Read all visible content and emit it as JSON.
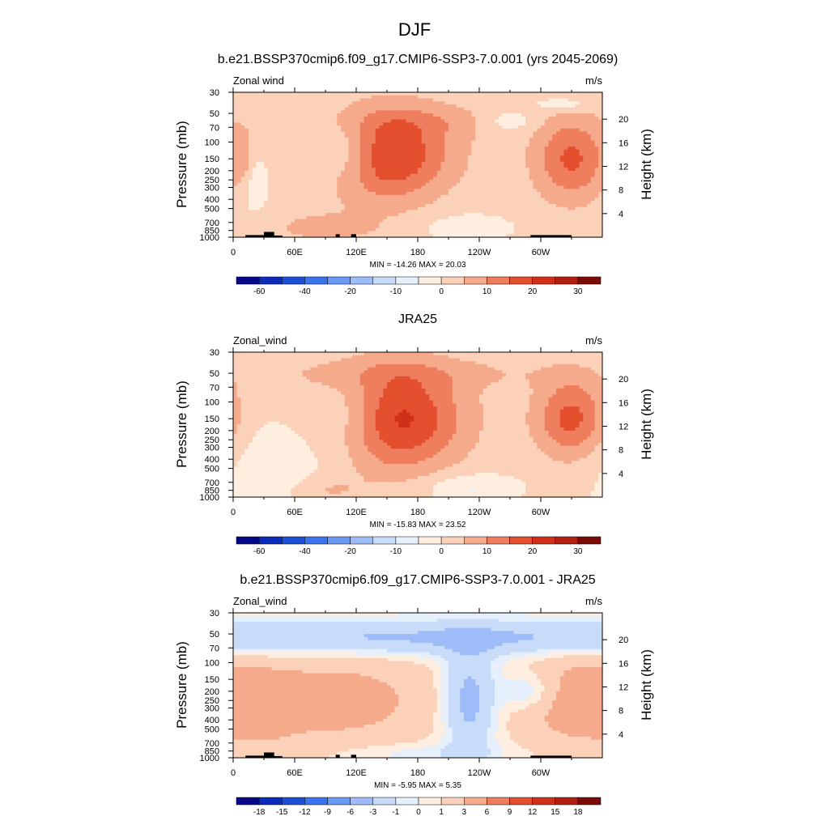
{
  "figure": {
    "title": "DJF"
  },
  "panels": [
    {
      "title": "b.e21.BSSP370cmip6.f09_g17.CMIP6-SSP3-7.0.001 (yrs 2045-2069)",
      "left_label": "Zonal wind",
      "right_label": "m/s",
      "stats": "MIN = -14.26  MAX =  20.03",
      "show_topography": true,
      "colorbar_ticks": [
        "-60",
        "-40",
        "-20",
        "-10",
        "0",
        "10",
        "20",
        "30"
      ],
      "colorbar_colors": [
        "#08088a",
        "#0c2bb8",
        "#1a4fd6",
        "#3b73ef",
        "#6b98f5",
        "#9ebcf8",
        "#c8dcfa",
        "#e6f0fc",
        "#fdeee0",
        "#fbd1b9",
        "#f6aa8c",
        "#ee7e5e",
        "#e4502f",
        "#d0301a",
        "#b21f11",
        "#7a0c05"
      ],
      "chart_data": {
        "type": "heatmap",
        "xlabel": "",
        "ylabel": "Pressure (mb)",
        "y2label": "Height (km)",
        "x_ticks": [
          "0",
          "60E",
          "120E",
          "180",
          "120W",
          "60W"
        ],
        "x_tick_values": [
          0,
          60,
          120,
          180,
          240,
          300
        ],
        "xlim": [
          0,
          360
        ],
        "y_ticks": [
          "30",
          "50",
          "70",
          "100",
          "150",
          "200",
          "250",
          "300",
          "400",
          "500",
          "700",
          "850",
          "1000"
        ],
        "y_tick_values": [
          30,
          50,
          70,
          100,
          150,
          200,
          250,
          300,
          400,
          500,
          700,
          850,
          1000
        ],
        "ylim": [
          1000,
          30
        ],
        "y_scale": "log",
        "y2_ticks": [
          "4",
          "8",
          "12",
          "16",
          "20"
        ],
        "y2_tick_values": [
          4,
          8,
          12,
          16,
          20
        ],
        "color_levels": [
          -70,
          -60,
          -50,
          -40,
          -30,
          -20,
          -15,
          -10,
          -5,
          0,
          5,
          10,
          15,
          20,
          25,
          30,
          35
        ],
        "features": [
          {
            "lon": 150,
            "p": 140,
            "slon": 45,
            "slogp": 0.33,
            "amp": 20
          },
          {
            "lon": 330,
            "p": 150,
            "slon": 25,
            "slogp": 0.3,
            "amp": 14
          },
          {
            "lon": 110,
            "p": 130,
            "slon": 22,
            "slogp": 0.25,
            "amp": -11
          },
          {
            "lon": 200,
            "p": 200,
            "slon": 40,
            "slogp": 0.4,
            "amp": -1.5
          },
          {
            "lon": 90,
            "p": 800,
            "slon": 35,
            "slogp": 0.1,
            "amp": 5
          },
          {
            "lon": 20,
            "p": 250,
            "slon": 12,
            "slogp": 0.25,
            "amp": -6
          },
          {
            "lon": 190,
            "p": 60,
            "slon": 60,
            "slogp": 0.12,
            "amp": 4
          },
          {
            "lon": 230,
            "p": 800,
            "slon": 30,
            "slogp": 0.1,
            "amp": -6
          },
          {
            "lon": 10,
            "p": 150,
            "slon": 6,
            "slogp": 0.2,
            "amp": 6
          },
          {
            "lon": 270,
            "p": 60,
            "slon": 20,
            "slogp": 0.08,
            "amp": -6
          },
          {
            "lon": 320,
            "p": 40,
            "slon": 20,
            "slogp": 0.05,
            "amp": -6
          }
        ],
        "base": 2
      }
    },
    {
      "title": "JRA25",
      "left_label": "Zonal_wind",
      "right_label": "m/s",
      "stats": "MIN = -15.83  MAX =  23.52",
      "show_topography": false,
      "colorbar_ticks": [
        "-60",
        "-40",
        "-20",
        "-10",
        "0",
        "10",
        "20",
        "30"
      ],
      "colorbar_colors": [
        "#08088a",
        "#0c2bb8",
        "#1a4fd6",
        "#3b73ef",
        "#6b98f5",
        "#9ebcf8",
        "#c8dcfa",
        "#e6f0fc",
        "#fdeee0",
        "#fbd1b9",
        "#f6aa8c",
        "#ee7e5e",
        "#e4502f",
        "#d0301a",
        "#b21f11",
        "#7a0c05"
      ],
      "chart_data": {
        "type": "heatmap",
        "xlabel": "",
        "ylabel": "Pressure (mb)",
        "y2label": "Height (km)",
        "x_ticks": [
          "0",
          "60E",
          "120E",
          "180",
          "120W",
          "60W"
        ],
        "x_tick_values": [
          0,
          60,
          120,
          180,
          240,
          300
        ],
        "xlim": [
          0,
          360
        ],
        "y_ticks": [
          "30",
          "50",
          "70",
          "100",
          "150",
          "200",
          "250",
          "300",
          "400",
          "500",
          "700",
          "850",
          "1000"
        ],
        "y_tick_values": [
          30,
          50,
          70,
          100,
          150,
          200,
          250,
          300,
          400,
          500,
          700,
          850,
          1000
        ],
        "ylim": [
          1000,
          30
        ],
        "y_scale": "log",
        "y2_ticks": [
          "4",
          "8",
          "12",
          "16",
          "20"
        ],
        "y2_tick_values": [
          4,
          8,
          12,
          16,
          20
        ],
        "color_levels": [
          -70,
          -60,
          -50,
          -40,
          -30,
          -20,
          -15,
          -10,
          -5,
          0,
          5,
          10,
          15,
          20,
          25,
          30,
          35
        ],
        "features": [
          {
            "lon": 150,
            "p": 150,
            "slon": 50,
            "slogp": 0.38,
            "amp": 23
          },
          {
            "lon": 330,
            "p": 150,
            "slon": 25,
            "slogp": 0.3,
            "amp": 16
          },
          {
            "lon": 115,
            "p": 140,
            "slon": 28,
            "slogp": 0.3,
            "amp": -12
          },
          {
            "lon": 50,
            "p": 400,
            "slon": 45,
            "slogp": 0.4,
            "amp": -5
          },
          {
            "lon": 180,
            "p": 50,
            "slon": 120,
            "slogp": 0.12,
            "amp": 4
          },
          {
            "lon": 90,
            "p": 850,
            "slon": 25,
            "slogp": 0.1,
            "amp": 5
          },
          {
            "lon": 230,
            "p": 800,
            "slon": 30,
            "slogp": 0.1,
            "amp": -7
          }
        ],
        "base": 1
      }
    },
    {
      "title": "b.e21.BSSP370cmip6.f09_g17.CMIP6-SSP3-7.0.001 - JRA25",
      "left_label": "Zonal_wind",
      "right_label": "m/s",
      "stats": "MIN = -5.95  MAX =  5.35",
      "show_topography": true,
      "colorbar_ticks": [
        "-18",
        "-15",
        "-12",
        "-9",
        "-6",
        "-3",
        "-1",
        "0",
        "1",
        "3",
        "6",
        "9",
        "12",
        "15",
        "18"
      ],
      "colorbar_colors": [
        "#08088a",
        "#0c2bb8",
        "#1a4fd6",
        "#3b73ef",
        "#6b98f5",
        "#9ebcf8",
        "#c8dcfa",
        "#e6f0fc",
        "#fdeee0",
        "#fbd1b9",
        "#f6aa8c",
        "#ee7e5e",
        "#e4502f",
        "#d0301a",
        "#b21f11",
        "#7a0c05"
      ],
      "chart_data": {
        "type": "heatmap",
        "xlabel": "",
        "ylabel": "Pressure (mb)",
        "y2label": "Height (km)",
        "x_ticks": [
          "0",
          "60E",
          "120E",
          "180",
          "120W",
          "60W"
        ],
        "x_tick_values": [
          0,
          60,
          120,
          180,
          240,
          300
        ],
        "xlim": [
          0,
          360
        ],
        "y_ticks": [
          "30",
          "50",
          "70",
          "100",
          "150",
          "200",
          "250",
          "300",
          "400",
          "500",
          "700",
          "850",
          "1000"
        ],
        "y_tick_values": [
          30,
          50,
          70,
          100,
          150,
          200,
          250,
          300,
          400,
          500,
          700,
          850,
          1000
        ],
        "ylim": [
          1000,
          30
        ],
        "y_scale": "log",
        "y2_ticks": [
          "4",
          "8",
          "12",
          "16",
          "20"
        ],
        "y2_tick_values": [
          4,
          8,
          12,
          16,
          20
        ],
        "color_levels": [
          -21,
          -18,
          -15,
          -12,
          -9,
          -6,
          -3,
          -1,
          0,
          1,
          3,
          6,
          9,
          12,
          15,
          18,
          21
        ],
        "features": [
          {
            "lon": 180,
            "p": 55,
            "slon": 400,
            "slogp": 0.13,
            "amp": -4.2
          },
          {
            "lon": 100,
            "p": 250,
            "slon": 70,
            "slogp": 0.35,
            "amp": 3.5
          },
          {
            "lon": 230,
            "p": 250,
            "slon": 18,
            "slogp": 0.4,
            "amp": -5
          },
          {
            "lon": 290,
            "p": 200,
            "slon": 20,
            "slogp": 0.15,
            "amp": -3
          },
          {
            "lon": 330,
            "p": 250,
            "slon": 40,
            "slogp": 0.35,
            "amp": 3.5
          },
          {
            "lon": 30,
            "p": 300,
            "slon": 25,
            "slogp": 0.3,
            "amp": 1.5
          },
          {
            "lon": 180,
            "p": 900,
            "slon": 60,
            "slogp": 0.08,
            "amp": -1.5
          }
        ],
        "base": 0.6
      }
    }
  ]
}
